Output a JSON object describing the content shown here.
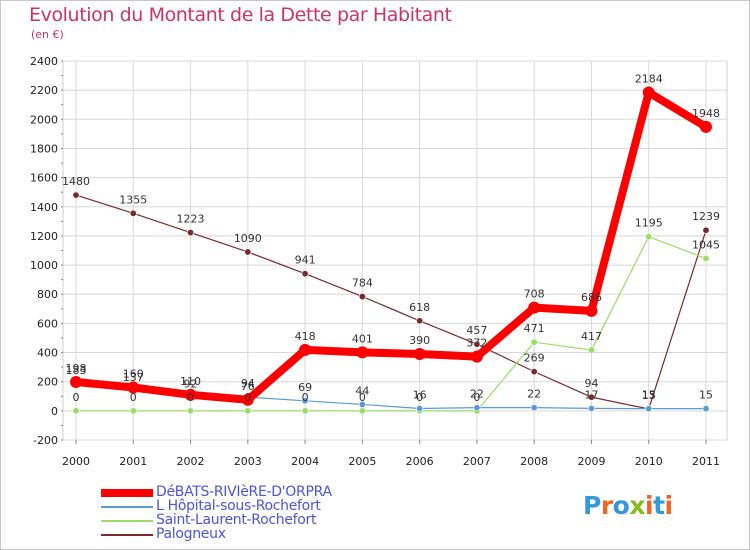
{
  "title": "Evolution du Montant de la Dette par Habitant",
  "subtitle": "(en €)",
  "logo": {
    "letters": [
      {
        "ch": "P",
        "color": "#3399dd"
      },
      {
        "ch": "r",
        "color": "#ee6622"
      },
      {
        "ch": "o",
        "color": "#3399dd"
      },
      {
        "ch": "x",
        "color": "#88bb22"
      },
      {
        "ch": "i",
        "color": "#ee6622"
      },
      {
        "ch": "t",
        "color": "#3399dd"
      },
      {
        "ch": "i",
        "color": "#ee6622"
      }
    ]
  },
  "chart_data": {
    "type": "line",
    "title": "Evolution du Montant de la Dette par Habitant",
    "ylabel": "(en €)",
    "xlabel": "",
    "x": [
      "2000",
      "2001",
      "2002",
      "2003",
      "2004",
      "2005",
      "2006",
      "2007",
      "2008",
      "2009",
      "2010",
      "2011"
    ],
    "ylim": [
      -200,
      2400
    ],
    "yticks": [
      -200,
      0,
      200,
      400,
      600,
      800,
      1000,
      1200,
      1400,
      1600,
      1800,
      2000,
      2200,
      2400
    ],
    "grid": true,
    "legend_position": "bottom-left",
    "series": [
      {
        "name": "DéBATS-RIVIèRE-D'ORPRA",
        "color": "#ff0000",
        "width": 8,
        "values": [
          198,
          160,
          110,
          76,
          418,
          401,
          390,
          372,
          708,
          686,
          2184,
          1948
        ],
        "labels": [
          "198",
          "160",
          "110",
          "76",
          "418",
          "401",
          "390",
          "372",
          "708",
          "686",
          "2184",
          "1948"
        ]
      },
      {
        "name": "L  Hôpital-sous-Rochefort",
        "color": "#5b9bd5",
        "width": 1.2,
        "values": [
          183,
          137,
          92,
          94,
          69,
          44,
          16,
          22,
          22,
          17,
          15,
          15
        ],
        "labels": [
          "183",
          "137",
          "92",
          "94",
          "69",
          "44",
          "16",
          "22",
          "22",
          "17",
          "15",
          "15"
        ]
      },
      {
        "name": "Saint-Laurent-Rochefort",
        "color": "#99dd66",
        "width": 1.2,
        "values": [
          0,
          0,
          0,
          0,
          0,
          0,
          0,
          0,
          471,
          417,
          1195,
          1045
        ],
        "labels": [
          "0",
          "0",
          "0",
          "0",
          "0",
          "0",
          "0",
          "0",
          "471",
          "417",
          "1195",
          "1045"
        ]
      },
      {
        "name": "Palogneux",
        "color": "#7a2a2a",
        "width": 1.2,
        "values": [
          1480,
          1355,
          1223,
          1090,
          941,
          784,
          618,
          457,
          269,
          94,
          13,
          1239
        ],
        "labels": [
          "1480",
          "1355",
          "1223",
          "1090",
          "941",
          "784",
          "618",
          "457",
          "269",
          "94",
          "13",
          "1239"
        ]
      }
    ]
  }
}
